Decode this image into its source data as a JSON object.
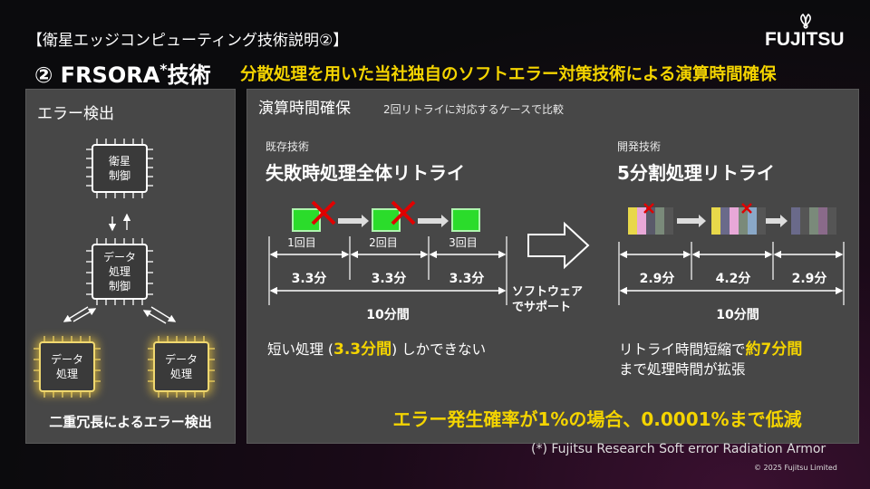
{
  "header": {
    "subtitle": "【衛星エッジコンピューティング技術説明②】",
    "title_main": "② FRSORA",
    "title_star": "*",
    "title_tail": "技術",
    "tagline": "分散処理を用いた当社独自のソフトエラー対策技術による演算時間確保",
    "logo_text": "FUJITSU"
  },
  "left_panel": {
    "title": "エラー検出",
    "chip_top": [
      "衛星",
      "制御"
    ],
    "chip_mid": [
      "データ",
      "処理",
      "制御"
    ],
    "chip_left": [
      "データ",
      "処理"
    ],
    "chip_right": [
      "データ",
      "処理"
    ],
    "caption": "二重冗長によるエラー検出"
  },
  "right_panel": {
    "title": "演算時間確保",
    "note": "2回リトライに対応するケースで比較",
    "existing": {
      "label": "既存技術",
      "title": "失敗時処理全体リトライ",
      "attempts": [
        "1回目",
        "2回目",
        "3回目"
      ],
      "segments": [
        "3.3分",
        "3.3分",
        "3.3分"
      ],
      "total": "10分間",
      "desc_pre": "短い処理 (",
      "desc_hl": "3.3分間",
      "desc_post": ") しかできない"
    },
    "middle_label": [
      "ソフトウェア",
      "でサポート"
    ],
    "developed": {
      "label": "開発技術",
      "title": "5分割処理リトライ",
      "segments": [
        "2.9分",
        "4.2分",
        "2.9分"
      ],
      "total": "10分間",
      "desc_pre": "リトライ時間短縮で",
      "desc_hl": "約7分間",
      "desc_post": "まで処理時間が拡張"
    },
    "result": "エラー発生確率が1%の場合、0.0001%まで低減"
  },
  "footer": {
    "footnote": "(*) Fujitsu Research Soft error Radiation Armor",
    "copyright": "© 2025 Fujitsu Limited"
  },
  "colors": {
    "accent_yellow": "#f4d400",
    "green_block": "#2bdc2b",
    "error_red": "#e00000"
  }
}
